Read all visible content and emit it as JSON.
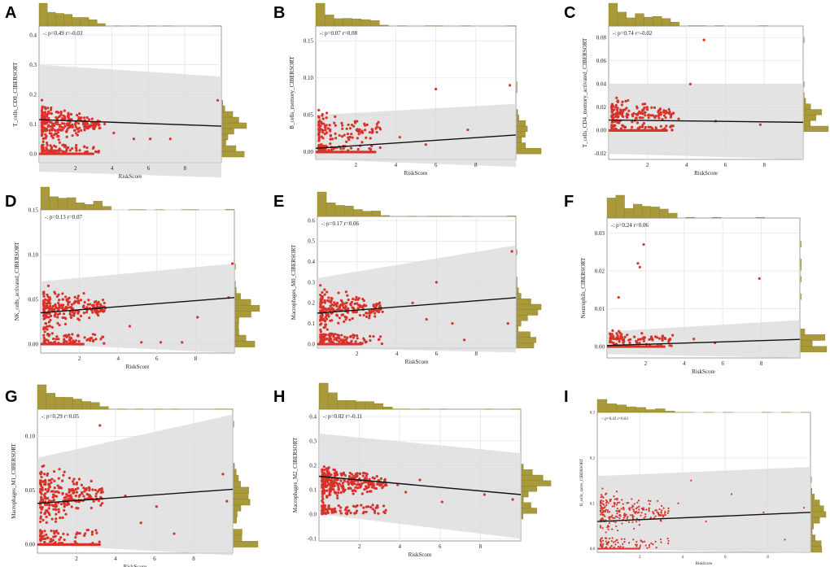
{
  "figure_colors": {
    "point": "#d7332a",
    "hist": "#a89a3a",
    "hist_stroke": "#8a7d25",
    "band": "#d9d9d9",
    "grid": "#e6e6e6",
    "line": "#111111"
  },
  "chart_data": [
    {
      "type": "scatter",
      "panel": "A",
      "ylabel": "T_cells_CD8_CIBERSORT",
      "xlabel": "RiskScore",
      "stat": "-: p=0.49 r=-0.03",
      "xlim": [
        0,
        10
      ],
      "ylim": [
        -0.03,
        0.43
      ],
      "x_ticks": [
        2,
        4,
        6,
        8
      ],
      "x_tick_labels": [
        "2",
        "4",
        "6",
        "8"
      ],
      "y_ticks": [
        0.0,
        0.1,
        0.2,
        0.3,
        0.4
      ],
      "y_tick_labels": [
        "0.0",
        "0.1",
        "0.2",
        "0.3",
        "0.4"
      ],
      "fit": {
        "intercept": 0.115,
        "slope": -0.0022
      },
      "band_top": [
        0.3,
        0.26
      ],
      "band_bottom": [
        -0.06,
        -0.08
      ],
      "zero_cluster": [
        0.0,
        3.0
      ],
      "outliers": [
        [
          9.8,
          0.18
        ],
        [
          5.2,
          0.05
        ],
        [
          6.1,
          0.05
        ],
        [
          7.2,
          0.05
        ],
        [
          3.6,
          0.1
        ],
        [
          4.1,
          0.07
        ]
      ],
      "cloud": {
        "count": 330,
        "y_mean": 0.1,
        "y_spread": 0.08
      },
      "seed": 11
    },
    {
      "type": "scatter",
      "panel": "B",
      "ylabel": "B_cells_memory_CIBERSORT",
      "xlabel": "RiskScore",
      "stat": "-: p=0.07 r=0.08",
      "xlim": [
        0,
        10
      ],
      "ylim": [
        -0.01,
        0.17
      ],
      "x_ticks": [
        2,
        4,
        6,
        8
      ],
      "x_tick_labels": [
        "2",
        "4",
        "6",
        "8"
      ],
      "y_ticks": [
        0.0,
        0.05,
        0.1,
        0.15
      ],
      "y_tick_labels": [
        "0.00",
        "0.05",
        "0.10",
        "0.15"
      ],
      "fit": {
        "intercept": 0.005,
        "slope": 0.0018
      },
      "band_top": [
        0.05,
        0.065
      ],
      "band_bottom": [
        -0.01,
        -0.02
      ],
      "zero_cluster": [
        0.0,
        3.0
      ],
      "outliers": [
        [
          9.7,
          0.09
        ],
        [
          6.0,
          0.085
        ],
        [
          7.6,
          0.03
        ],
        [
          5.5,
          0.01
        ],
        [
          4.2,
          0.02
        ]
      ],
      "cloud": {
        "count": 170,
        "y_mean": 0.03,
        "y_spread": 0.03
      },
      "seed": 23
    },
    {
      "type": "scatter",
      "panel": "C",
      "ylabel": "T_cells_CD4_memory_activated_CIBERSORT",
      "xlabel": "RiskScore",
      "stat": "-: p=0.74 r=-0.02",
      "xlim": [
        0,
        10
      ],
      "ylim": [
        -0.025,
        0.09
      ],
      "x_ticks": [
        2,
        4,
        6,
        8
      ],
      "x_tick_labels": [
        "2",
        "4",
        "6",
        "8"
      ],
      "y_ticks": [
        -0.02,
        0.0,
        0.02,
        0.04,
        0.06,
        0.08
      ],
      "y_tick_labels": [
        "-0.02",
        "0.00",
        "0.02",
        "0.04",
        "0.06",
        "0.08"
      ],
      "fit": {
        "intercept": 0.009,
        "slope": -0.0002
      },
      "band_top": [
        0.04,
        0.04
      ],
      "band_bottom": [
        -0.02,
        -0.025
      ],
      "zero_cluster": [
        0.0,
        3.0
      ],
      "outliers": [
        [
          4.9,
          0.078
        ],
        [
          4.2,
          0.04
        ],
        [
          3.6,
          0.01
        ],
        [
          5.5,
          0.008
        ],
        [
          7.8,
          0.005
        ]
      ],
      "cloud": {
        "count": 190,
        "y_mean": 0.015,
        "y_spread": 0.015
      },
      "seed": 37
    },
    {
      "type": "scatter",
      "panel": "D",
      "ylabel": "NK_cells_activated_CIBERSORT",
      "xlabel": "RiskScore",
      "stat": "-: p=0.13 r=0.07",
      "xlim": [
        0,
        10
      ],
      "ylim": [
        -0.01,
        0.15
      ],
      "x_ticks": [
        2,
        4,
        6,
        8
      ],
      "x_tick_labels": [
        "2",
        "4",
        "6",
        "8"
      ],
      "y_ticks": [
        0.0,
        0.05,
        0.1,
        0.15
      ],
      "y_tick_labels": [
        "0.00",
        "0.05",
        "0.10",
        "0.15"
      ],
      "fit": {
        "intercept": 0.035,
        "slope": 0.0017
      },
      "band_top": [
        0.07,
        0.09
      ],
      "band_bottom": [
        0.0,
        -0.01
      ],
      "zero_cluster": [
        0.0,
        2.2
      ],
      "outliers": [
        [
          9.7,
          0.052
        ],
        [
          9.9,
          0.09
        ],
        [
          4.6,
          0.02
        ],
        [
          6.2,
          0.002
        ],
        [
          7.3,
          0.002
        ],
        [
          8.1,
          0.03
        ],
        [
          5.2,
          0.002
        ]
      ],
      "cloud": {
        "count": 320,
        "y_mean": 0.04,
        "y_spread": 0.03
      },
      "seed": 41
    },
    {
      "type": "scatter",
      "panel": "E",
      "ylabel": "Macrophages_M0_CIBERSORT",
      "xlabel": "RiskScore",
      "stat": "-: p=0.17 r=0.06",
      "xlim": [
        0,
        10
      ],
      "ylim": [
        -0.02,
        0.62
      ],
      "x_ticks": [
        2,
        4,
        6,
        8
      ],
      "x_tick_labels": [
        "2",
        "4",
        "6",
        "8"
      ],
      "y_ticks": [
        0.0,
        0.1,
        0.2,
        0.3,
        0.4,
        0.5,
        0.6
      ],
      "y_tick_labels": [
        "0.0",
        "0.1",
        "0.2",
        "0.3",
        "0.4",
        "0.5",
        "0.6"
      ],
      "fit": {
        "intercept": 0.15,
        "slope": 0.0075
      },
      "band_top": [
        0.32,
        0.48
      ],
      "band_bottom": [
        -0.02,
        -0.04
      ],
      "zero_cluster": [
        0.0,
        2.2
      ],
      "outliers": [
        [
          9.6,
          0.1
        ],
        [
          9.8,
          0.45
        ],
        [
          6.0,
          0.3
        ],
        [
          5.5,
          0.12
        ],
        [
          4.8,
          0.2
        ],
        [
          7.4,
          0.02
        ],
        [
          6.8,
          0.1
        ]
      ],
      "cloud": {
        "count": 320,
        "y_mean": 0.17,
        "y_spread": 0.12
      },
      "seed": 53
    },
    {
      "type": "scatter",
      "panel": "F",
      "ylabel": "Neutrophils_CIBERSORT",
      "xlabel": "RiskScore",
      "stat": "-: p=0.24 r=0.06",
      "xlim": [
        0,
        10
      ],
      "ylim": [
        -0.003,
        0.034
      ],
      "x_ticks": [
        2,
        4,
        6,
        8
      ],
      "x_tick_labels": [
        "2",
        "4",
        "6",
        "8"
      ],
      "y_ticks": [
        0.0,
        0.01,
        0.02,
        0.03
      ],
      "y_tick_labels": [
        "0.00",
        "0.01",
        "0.02",
        "0.03"
      ],
      "fit": {
        "intercept": 0.0003,
        "slope": 0.00016
      },
      "band_top": [
        0.004,
        0.007
      ],
      "band_bottom": [
        -0.002,
        -0.003
      ],
      "zero_cluster": [
        0.0,
        3.0
      ],
      "outliers": [
        [
          7.9,
          0.018
        ],
        [
          1.6,
          0.022
        ],
        [
          1.7,
          0.021
        ],
        [
          1.9,
          0.027
        ],
        [
          0.6,
          0.013
        ],
        [
          4.5,
          0.002
        ],
        [
          5.6,
          0.001
        ],
        [
          3.4,
          0.003
        ]
      ],
      "cloud": {
        "count": 90,
        "y_mean": 0.002,
        "y_spread": 0.003
      },
      "seed": 61
    },
    {
      "type": "scatter",
      "panel": "G",
      "ylabel": "Macrophages_M1_CIBERSORT",
      "xlabel": "RiskScore",
      "stat": "-: p=0.29 r=0.05",
      "xlim": [
        0,
        10
      ],
      "ylim": [
        -0.008,
        0.125
      ],
      "x_ticks": [
        2,
        4,
        6,
        8
      ],
      "x_tick_labels": [
        "2",
        "4",
        "6",
        "8"
      ],
      "y_ticks": [
        0.0,
        0.05,
        0.1
      ],
      "y_tick_labels": [
        "0.00",
        "0.05",
        "0.10"
      ],
      "fit": {
        "intercept": 0.038,
        "slope": 0.0013
      },
      "band_top": [
        0.08,
        0.12
      ],
      "band_bottom": [
        0.0,
        -0.01
      ],
      "zero_cluster": [
        0.0,
        3.2
      ],
      "outliers": [
        [
          9.7,
          0.04
        ],
        [
          9.5,
          0.065
        ],
        [
          3.2,
          0.11
        ],
        [
          4.5,
          0.045
        ],
        [
          6.1,
          0.035
        ],
        [
          7.0,
          0.01
        ],
        [
          5.3,
          0.02
        ]
      ],
      "cloud": {
        "count": 320,
        "y_mean": 0.045,
        "y_spread": 0.035
      },
      "seed": 71
    },
    {
      "type": "scatter",
      "panel": "H",
      "ylabel": "Macrophages_M2_CIBERSORT",
      "xlabel": "RiskScore",
      "stat": "-: p=0.02 r=-0.11",
      "xlim": [
        0,
        10
      ],
      "ylim": [
        -0.11,
        0.43
      ],
      "x_ticks": [
        2,
        4,
        6,
        8
      ],
      "x_tick_labels": [
        "2",
        "4",
        "6",
        "8"
      ],
      "y_ticks": [
        -0.1,
        0.0,
        0.1,
        0.2,
        0.3,
        0.4
      ],
      "y_tick_labels": [
        "-0.1",
        "0.0",
        "0.1",
        "0.2",
        "0.3",
        "0.4"
      ],
      "fit": {
        "intercept": 0.155,
        "slope": -0.0075
      },
      "band_top": [
        0.33,
        0.25
      ],
      "band_bottom": [
        0.0,
        -0.1
      ],
      "zero_cluster": [
        0.0,
        0.0
      ],
      "outliers": [
        [
          9.6,
          0.06
        ],
        [
          8.2,
          0.08
        ],
        [
          6.1,
          0.05
        ],
        [
          5.0,
          0.14
        ],
        [
          4.3,
          0.09
        ],
        [
          3.9,
          0.12
        ]
      ],
      "cloud": {
        "count": 380,
        "y_mean": 0.13,
        "y_spread": 0.09
      },
      "seed": 83
    },
    {
      "type": "scatter",
      "panel": "I",
      "ylabel": "B_cells_naive_CIBERSORT",
      "xlabel": "RiskScore",
      "stat": "-: p=0.43 r=0.03",
      "xlim": [
        0,
        10
      ],
      "ylim": [
        -0.008,
        0.3
      ],
      "x_ticks": [
        2,
        4,
        6,
        8
      ],
      "x_tick_labels": [
        "2",
        "4",
        "6",
        "8"
      ],
      "y_ticks": [
        0.0,
        0.1,
        0.2,
        0.3
      ],
      "y_tick_labels": [
        "0.0",
        "0.1",
        "0.2",
        "0.3"
      ],
      "fit": {
        "intercept": 0.06,
        "slope": 0.002
      },
      "band_top": [
        0.16,
        0.18
      ],
      "band_bottom": [
        0.0,
        -0.01
      ],
      "zero_cluster": [
        0.0,
        2.0
      ],
      "outliers": [
        [
          9.7,
          0.09
        ],
        [
          7.8,
          0.08
        ],
        [
          6.3,
          0.12
        ],
        [
          5.1,
          0.06
        ],
        [
          4.4,
          0.15
        ],
        [
          3.8,
          0.1
        ],
        [
          8.8,
          0.02
        ]
      ],
      "cloud": {
        "count": 300,
        "y_mean": 0.08,
        "y_spread": 0.06
      },
      "seed": 97
    }
  ]
}
